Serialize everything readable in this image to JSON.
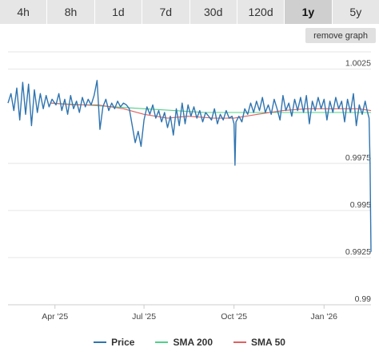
{
  "toolbar": {
    "tabs": [
      "4h",
      "8h",
      "1d",
      "7d",
      "30d",
      "120d",
      "1y",
      "5y"
    ],
    "active_tab": "1y",
    "remove_label": "remove graph"
  },
  "colors": {
    "price": "#2f74b0",
    "sma200": "#4fd08a",
    "sma50": "#e06060",
    "grid": "#e6e6e6"
  },
  "chart_data": {
    "type": "line",
    "ylim": [
      0.99,
      1.0035
    ],
    "y_ticks": [
      1.0025,
      0.9975,
      0.995,
      0.9925,
      0.99
    ],
    "y_tick_labels": [
      "1.0025",
      "0.9975",
      "0.995",
      "0.9925",
      "0.99"
    ],
    "x_range": [
      "2025-02-12",
      "2026-02-18"
    ],
    "x_ticks": [
      {
        "date": "2025-04-01",
        "label": "Apr '25"
      },
      {
        "date": "2025-07-01",
        "label": "Jul '25"
      },
      {
        "date": "2025-10-01",
        "label": "Oct '25"
      },
      {
        "date": "2026-01-01",
        "label": "Jan '26"
      }
    ],
    "grid": true,
    "legend_position": "bottom",
    "series": [
      {
        "name": "Price",
        "points": [
          [
            "2025-02-12",
            1.0007
          ],
          [
            "2025-02-15",
            1.0012
          ],
          [
            "2025-02-18",
            1.0003
          ],
          [
            "2025-02-21",
            1.0015
          ],
          [
            "2025-02-24",
            0.9998
          ],
          [
            "2025-02-27",
            1.0018
          ],
          [
            "2025-03-02",
            1.0001
          ],
          [
            "2025-03-05",
            1.0017
          ],
          [
            "2025-03-08",
            0.9995
          ],
          [
            "2025-03-11",
            1.0014
          ],
          [
            "2025-03-14",
            1.0002
          ],
          [
            "2025-03-17",
            1.0012
          ],
          [
            "2025-03-20",
            1.0004
          ],
          [
            "2025-03-23",
            1.0011
          ],
          [
            "2025-03-26",
            1.0005
          ],
          [
            "2025-03-29",
            1.0009
          ],
          [
            "2025-04-02",
            1.0006
          ],
          [
            "2025-04-05",
            1.0012
          ],
          [
            "2025-04-08",
            1.0003
          ],
          [
            "2025-04-11",
            1.0009
          ],
          [
            "2025-04-14",
            1.0001
          ],
          [
            "2025-04-17",
            1.0011
          ],
          [
            "2025-04-20",
            1.0004
          ],
          [
            "2025-04-23",
            1.0008
          ],
          [
            "2025-04-26",
            1.0002
          ],
          [
            "2025-04-29",
            1.001
          ],
          [
            "2025-05-02",
            1.0005
          ],
          [
            "2025-05-05",
            1.0009
          ],
          [
            "2025-05-08",
            1.0006
          ],
          [
            "2025-05-11",
            1.0011
          ],
          [
            "2025-05-14",
            1.0019
          ],
          [
            "2025-05-17",
            0.9993
          ],
          [
            "2025-05-20",
            1.0005
          ],
          [
            "2025-05-23",
            1.0009
          ],
          [
            "2025-05-26",
            1.0003
          ],
          [
            "2025-05-29",
            1.0007
          ],
          [
            "2025-06-01",
            1.0004
          ],
          [
            "2025-06-04",
            1.0008
          ],
          [
            "2025-06-07",
            1.0005
          ],
          [
            "2025-06-10",
            1.0007
          ],
          [
            "2025-06-13",
            1.0006
          ],
          [
            "2025-06-16",
            1.0004
          ],
          [
            "2025-06-19",
            0.9995
          ],
          [
            "2025-06-22",
            0.9986
          ],
          [
            "2025-06-25",
            0.9992
          ],
          [
            "2025-06-28",
            0.9984
          ],
          [
            "2025-07-01",
            0.9998
          ],
          [
            "2025-07-04",
            1.0005
          ],
          [
            "2025-07-07",
            1.0001
          ],
          [
            "2025-07-10",
            1.0006
          ],
          [
            "2025-07-13",
            0.9999
          ],
          [
            "2025-07-16",
            1.0003
          ],
          [
            "2025-07-19",
            0.9997
          ],
          [
            "2025-07-22",
            1.0002
          ],
          [
            "2025-07-25",
            0.9994
          ],
          [
            "2025-07-28",
            1.0
          ],
          [
            "2025-07-31",
            0.999
          ],
          [
            "2025-08-03",
            1.0004
          ],
          [
            "2025-08-06",
            0.9995
          ],
          [
            "2025-08-09",
            1.0007
          ],
          [
            "2025-08-12",
            0.9996
          ],
          [
            "2025-08-15",
            1.0006
          ],
          [
            "2025-08-18",
            1.0
          ],
          [
            "2025-08-21",
            1.0005
          ],
          [
            "2025-08-24",
            0.9999
          ],
          [
            "2025-08-27",
            1.0003
          ],
          [
            "2025-08-30",
            0.9997
          ],
          [
            "2025-09-02",
            1.0002
          ],
          [
            "2025-09-05",
            1.0
          ],
          [
            "2025-09-08",
            0.9998
          ],
          [
            "2025-09-11",
            1.0004
          ],
          [
            "2025-09-14",
            0.9996
          ],
          [
            "2025-09-17",
            1.0001
          ],
          [
            "2025-09-20",
            0.9998
          ],
          [
            "2025-09-23",
            1.0003
          ],
          [
            "2025-09-26",
            0.9999
          ],
          [
            "2025-09-29",
            1.0
          ],
          [
            "2025-10-01",
            0.9996
          ],
          [
            "2025-10-02",
            0.9974
          ],
          [
            "2025-10-03",
            0.9997
          ],
          [
            "2025-10-06",
            1.0
          ],
          [
            "2025-10-09",
            0.9997
          ],
          [
            "2025-10-12",
            1.0004
          ],
          [
            "2025-10-15",
            1.0001
          ],
          [
            "2025-10-18",
            1.0007
          ],
          [
            "2025-10-21",
            1.0002
          ],
          [
            "2025-10-24",
            1.0008
          ],
          [
            "2025-10-27",
            1.0003
          ],
          [
            "2025-10-30",
            1.001
          ],
          [
            "2025-11-02",
            1.0002
          ],
          [
            "2025-11-05",
            1.0006
          ],
          [
            "2025-11-08",
            1.0001
          ],
          [
            "2025-11-11",
            1.0009
          ],
          [
            "2025-11-14",
            1.0004
          ],
          [
            "2025-11-17",
            0.9998
          ],
          [
            "2025-11-20",
            1.0011
          ],
          [
            "2025-11-23",
            1.0003
          ],
          [
            "2025-11-26",
            1.0007
          ],
          [
            "2025-11-29",
            1.0
          ],
          [
            "2025-12-02",
            1.0009
          ],
          [
            "2025-12-05",
            1.0003
          ],
          [
            "2025-12-08",
            1.001
          ],
          [
            "2025-12-11",
            1.0002
          ],
          [
            "2025-12-14",
            1.0011
          ],
          [
            "2025-12-17",
            0.9996
          ],
          [
            "2025-12-20",
            1.0008
          ],
          [
            "2025-12-23",
            1.0003
          ],
          [
            "2025-12-26",
            1.001
          ],
          [
            "2025-12-29",
            1.0004
          ],
          [
            "2026-01-01",
            1.0009
          ],
          [
            "2026-01-04",
            0.9998
          ],
          [
            "2026-01-07",
            1.0008
          ],
          [
            "2026-01-10",
            1.0002
          ],
          [
            "2026-01-13",
            1.001
          ],
          [
            "2026-01-16",
            1.0004
          ],
          [
            "2026-01-19",
            1.0008
          ],
          [
            "2026-01-22",
            0.9997
          ],
          [
            "2026-01-25",
            1.0009
          ],
          [
            "2026-01-28",
            1.0002
          ],
          [
            "2026-01-31",
            1.0012
          ],
          [
            "2026-02-03",
            0.9995
          ],
          [
            "2026-02-06",
            1.0006
          ],
          [
            "2026-02-09",
            1.0001
          ],
          [
            "2026-02-12",
            1.0008
          ],
          [
            "2026-02-14",
            1.0003
          ],
          [
            "2026-02-16",
            0.9999
          ],
          [
            "2026-02-17",
            0.9975
          ],
          [
            "2026-02-18",
            0.9928
          ]
        ]
      },
      {
        "name": "SMA 200",
        "points": [
          [
            "2025-03-28",
            1.0007
          ],
          [
            "2025-05-01",
            1.0006
          ],
          [
            "2025-06-01",
            1.0005
          ],
          [
            "2025-07-01",
            1.0004
          ],
          [
            "2025-08-01",
            1.0003
          ],
          [
            "2025-09-01",
            1.0002
          ],
          [
            "2025-10-01",
            1.0002
          ],
          [
            "2025-11-01",
            1.0002
          ],
          [
            "2025-12-01",
            1.0002
          ],
          [
            "2026-01-01",
            1.0002
          ],
          [
            "2026-02-18",
            1.0002
          ]
        ]
      },
      {
        "name": "SMA 50",
        "points": [
          [
            "2025-03-28",
            1.0007
          ],
          [
            "2025-04-20",
            1.0006
          ],
          [
            "2025-05-15",
            1.0006
          ],
          [
            "2025-06-10",
            1.0004
          ],
          [
            "2025-07-01",
            1.0001
          ],
          [
            "2025-07-25",
            0.9999
          ],
          [
            "2025-08-15",
            1.0
          ],
          [
            "2025-09-10",
            0.9999
          ],
          [
            "2025-10-01",
            0.9999
          ],
          [
            "2025-10-25",
            1.0001
          ],
          [
            "2025-11-20",
            1.0003
          ],
          [
            "2025-12-15",
            1.0004
          ],
          [
            "2026-01-10",
            1.0004
          ],
          [
            "2026-02-05",
            1.0004
          ],
          [
            "2026-02-18",
            1.0003
          ]
        ]
      }
    ]
  },
  "legend": [
    {
      "key": "price",
      "label": "Price"
    },
    {
      "key": "sma200",
      "label": "SMA 200"
    },
    {
      "key": "sma50",
      "label": "SMA 50"
    }
  ]
}
